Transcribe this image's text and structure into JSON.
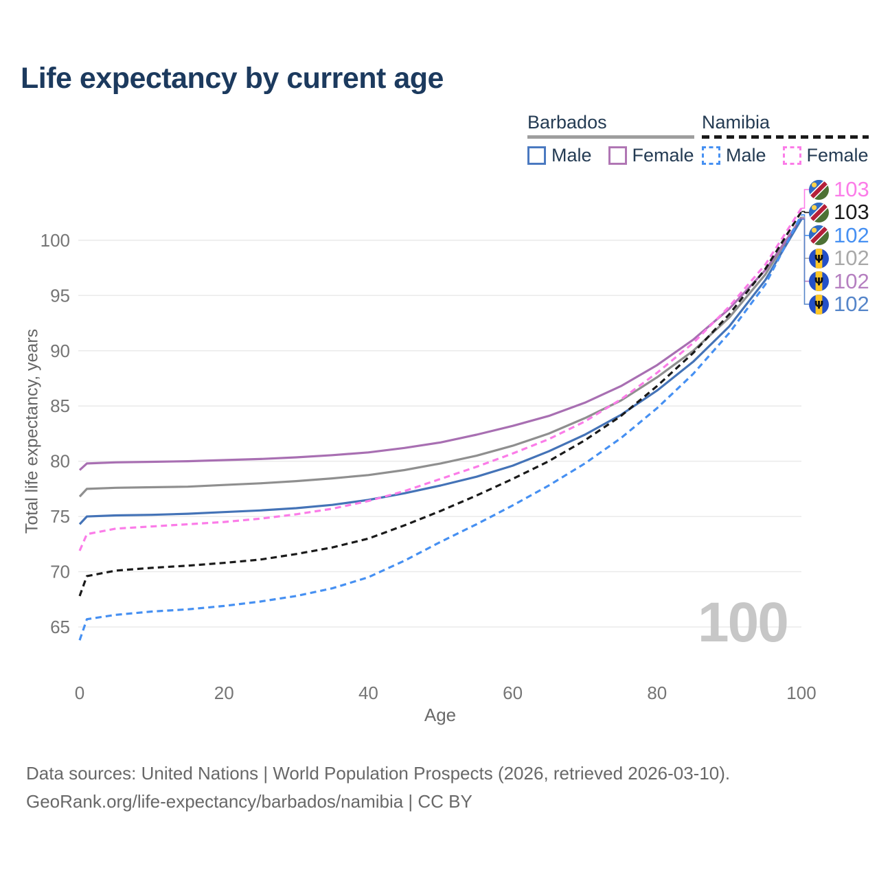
{
  "title": "Life expectancy by current age",
  "legend": {
    "groups": [
      {
        "label": "Barbados",
        "style": "solid",
        "underline_color": "#9e9e9e",
        "items": [
          {
            "label": "Male",
            "color": "#4a79c0",
            "dashed": false
          },
          {
            "label": "Female",
            "color": "#b076b4",
            "dashed": false
          }
        ]
      },
      {
        "label": "Namibia",
        "style": "dashed",
        "underline_color": "#1a1a1a",
        "items": [
          {
            "label": "Male",
            "color": "#4690f2",
            "dashed": true
          },
          {
            "label": "Female",
            "color": "#fb7ce8",
            "dashed": true
          }
        ]
      }
    ]
  },
  "watermark": "100",
  "footer": {
    "line1": "Data sources: United Nations | World Population Prospects (2026, retrieved 2026-03-10).",
    "line2": "GeoRank.org/life-expectancy/barbados/namibia | CC BY"
  },
  "chart_data": {
    "type": "line",
    "title": "Life expectancy by current age",
    "xlabel": "Age",
    "ylabel": "Total life expectancy, years",
    "x_ticks": [
      0,
      20,
      40,
      60,
      80,
      100
    ],
    "y_ticks": [
      65,
      70,
      75,
      80,
      85,
      90,
      95,
      100
    ],
    "xlim": [
      0,
      100
    ],
    "ylim": [
      63,
      104
    ],
    "grid": "horizontal",
    "legend_position": "top-right",
    "x": [
      0,
      1,
      5,
      10,
      15,
      20,
      25,
      30,
      35,
      40,
      45,
      50,
      55,
      60,
      65,
      70,
      75,
      80,
      85,
      90,
      95,
      100
    ],
    "series": [
      {
        "name": "Barbados Both sexes",
        "country": "Barbados",
        "sex": "Both",
        "color": "#8f8f8f",
        "dash": "solid",
        "end_label": "102",
        "values": [
          76.8,
          77.5,
          77.6,
          77.65,
          77.7,
          77.85,
          78.0,
          78.2,
          78.45,
          78.75,
          79.2,
          79.8,
          80.5,
          81.4,
          82.5,
          83.9,
          85.5,
          87.6,
          90.0,
          93.0,
          96.9,
          102.1
        ]
      },
      {
        "name": "Barbados Female",
        "country": "Barbados",
        "sex": "Female",
        "color": "#a86fb2",
        "dash": "solid",
        "end_label": "102",
        "values": [
          79.2,
          79.8,
          79.9,
          79.95,
          80.0,
          80.1,
          80.2,
          80.35,
          80.55,
          80.8,
          81.2,
          81.7,
          82.4,
          83.2,
          84.1,
          85.3,
          86.8,
          88.7,
          91.0,
          93.8,
          97.3,
          102.0
        ]
      },
      {
        "name": "Barbados Male",
        "country": "Barbados",
        "sex": "Male",
        "color": "#4473b7",
        "dash": "solid",
        "end_label": "102",
        "values": [
          74.3,
          75.0,
          75.1,
          75.15,
          75.25,
          75.4,
          75.55,
          75.75,
          76.05,
          76.5,
          77.1,
          77.8,
          78.6,
          79.6,
          80.9,
          82.4,
          84.2,
          86.4,
          89.0,
          92.2,
          96.4,
          101.9
        ]
      },
      {
        "name": "Namibia Male",
        "country": "Namibia",
        "sex": "Male",
        "color": "#4690f2",
        "dash": "dashed",
        "end_label": "102",
        "values": [
          63.8,
          65.7,
          66.1,
          66.4,
          66.6,
          66.9,
          67.3,
          67.8,
          68.5,
          69.5,
          71.0,
          72.7,
          74.3,
          76.0,
          77.8,
          79.8,
          82.1,
          84.8,
          87.9,
          91.6,
          96.0,
          102.3
        ]
      },
      {
        "name": "Namibia Both sexes",
        "country": "Namibia",
        "sex": "Both",
        "color": "#1a1a1a",
        "dash": "dashed",
        "end_label": "103",
        "values": [
          67.8,
          69.6,
          70.1,
          70.35,
          70.55,
          70.8,
          71.1,
          71.6,
          72.2,
          73.0,
          74.2,
          75.5,
          76.9,
          78.4,
          80.0,
          81.9,
          84.1,
          86.8,
          89.8,
          93.3,
          97.4,
          102.6
        ]
      },
      {
        "name": "Namibia Female",
        "country": "Namibia",
        "sex": "Female",
        "color": "#fb7ce8",
        "dash": "dashed",
        "end_label": "103",
        "values": [
          71.9,
          73.4,
          73.9,
          74.1,
          74.3,
          74.5,
          74.8,
          75.2,
          75.7,
          76.4,
          77.3,
          78.4,
          79.5,
          80.7,
          82.0,
          83.6,
          85.6,
          88.0,
          90.7,
          94.0,
          97.8,
          102.9
        ]
      }
    ],
    "end_labels": [
      {
        "value": "103",
        "flag": "namibia",
        "color": "#fb7ce8",
        "series": "Namibia Female"
      },
      {
        "value": "103",
        "flag": "namibia",
        "color": "#1a1a1a",
        "series": "Namibia Both sexes"
      },
      {
        "value": "102",
        "flag": "namibia",
        "color": "#4690f2",
        "series": "Namibia Male"
      },
      {
        "value": "102",
        "flag": "barbados",
        "color": "#a8a8a8",
        "series": "Barbados Both sexes"
      },
      {
        "value": "102",
        "flag": "barbados",
        "color": "#b57fc0",
        "series": "Barbados Female"
      },
      {
        "value": "102",
        "flag": "barbados",
        "color": "#5585c9",
        "series": "Barbados Male"
      }
    ]
  }
}
